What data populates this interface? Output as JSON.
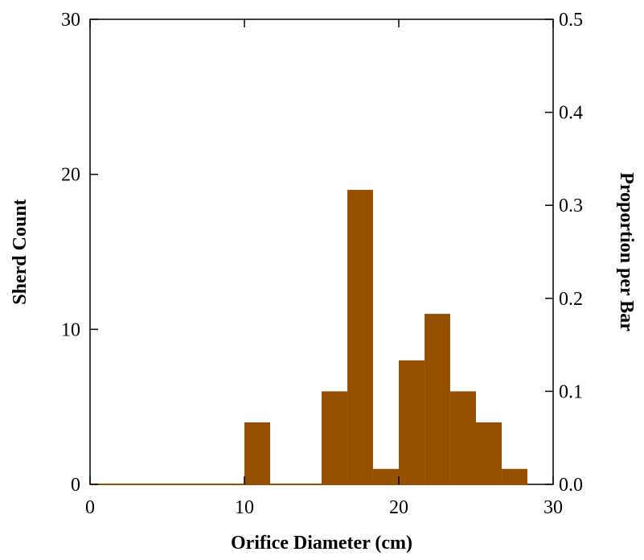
{
  "chart_data": {
    "type": "bar",
    "xlabel": "Orifice Diameter (cm)",
    "ylabel": "Sherd Count",
    "ylabel_right": "Proportion per Bar",
    "xlim": [
      0,
      30
    ],
    "ylim": [
      0,
      30
    ],
    "ylim_right": [
      0,
      0.5
    ],
    "x_ticks": [
      "0",
      "10",
      "20",
      "30"
    ],
    "y_ticks": [
      "0",
      "10",
      "20",
      "30"
    ],
    "y_ticks_right": [
      "0.0",
      "0.1",
      "0.2",
      "0.3",
      "0.4",
      "0.5"
    ],
    "bin_width": 1.67,
    "bars": [
      {
        "x0": 10.0,
        "x1": 11.67,
        "value": 4
      },
      {
        "x0": 15.0,
        "x1": 16.67,
        "value": 6
      },
      {
        "x0": 16.67,
        "x1": 18.33,
        "value": 19
      },
      {
        "x0": 18.33,
        "x1": 20.0,
        "value": 1
      },
      {
        "x0": 20.0,
        "x1": 21.67,
        "value": 8
      },
      {
        "x0": 21.67,
        "x1": 23.33,
        "value": 11
      },
      {
        "x0": 23.33,
        "x1": 25.0,
        "value": 6
      },
      {
        "x0": 25.0,
        "x1": 26.67,
        "value": 4
      },
      {
        "x0": 26.67,
        "x1": 28.33,
        "value": 1
      }
    ],
    "bar_color": "#944f00",
    "grid": false
  }
}
